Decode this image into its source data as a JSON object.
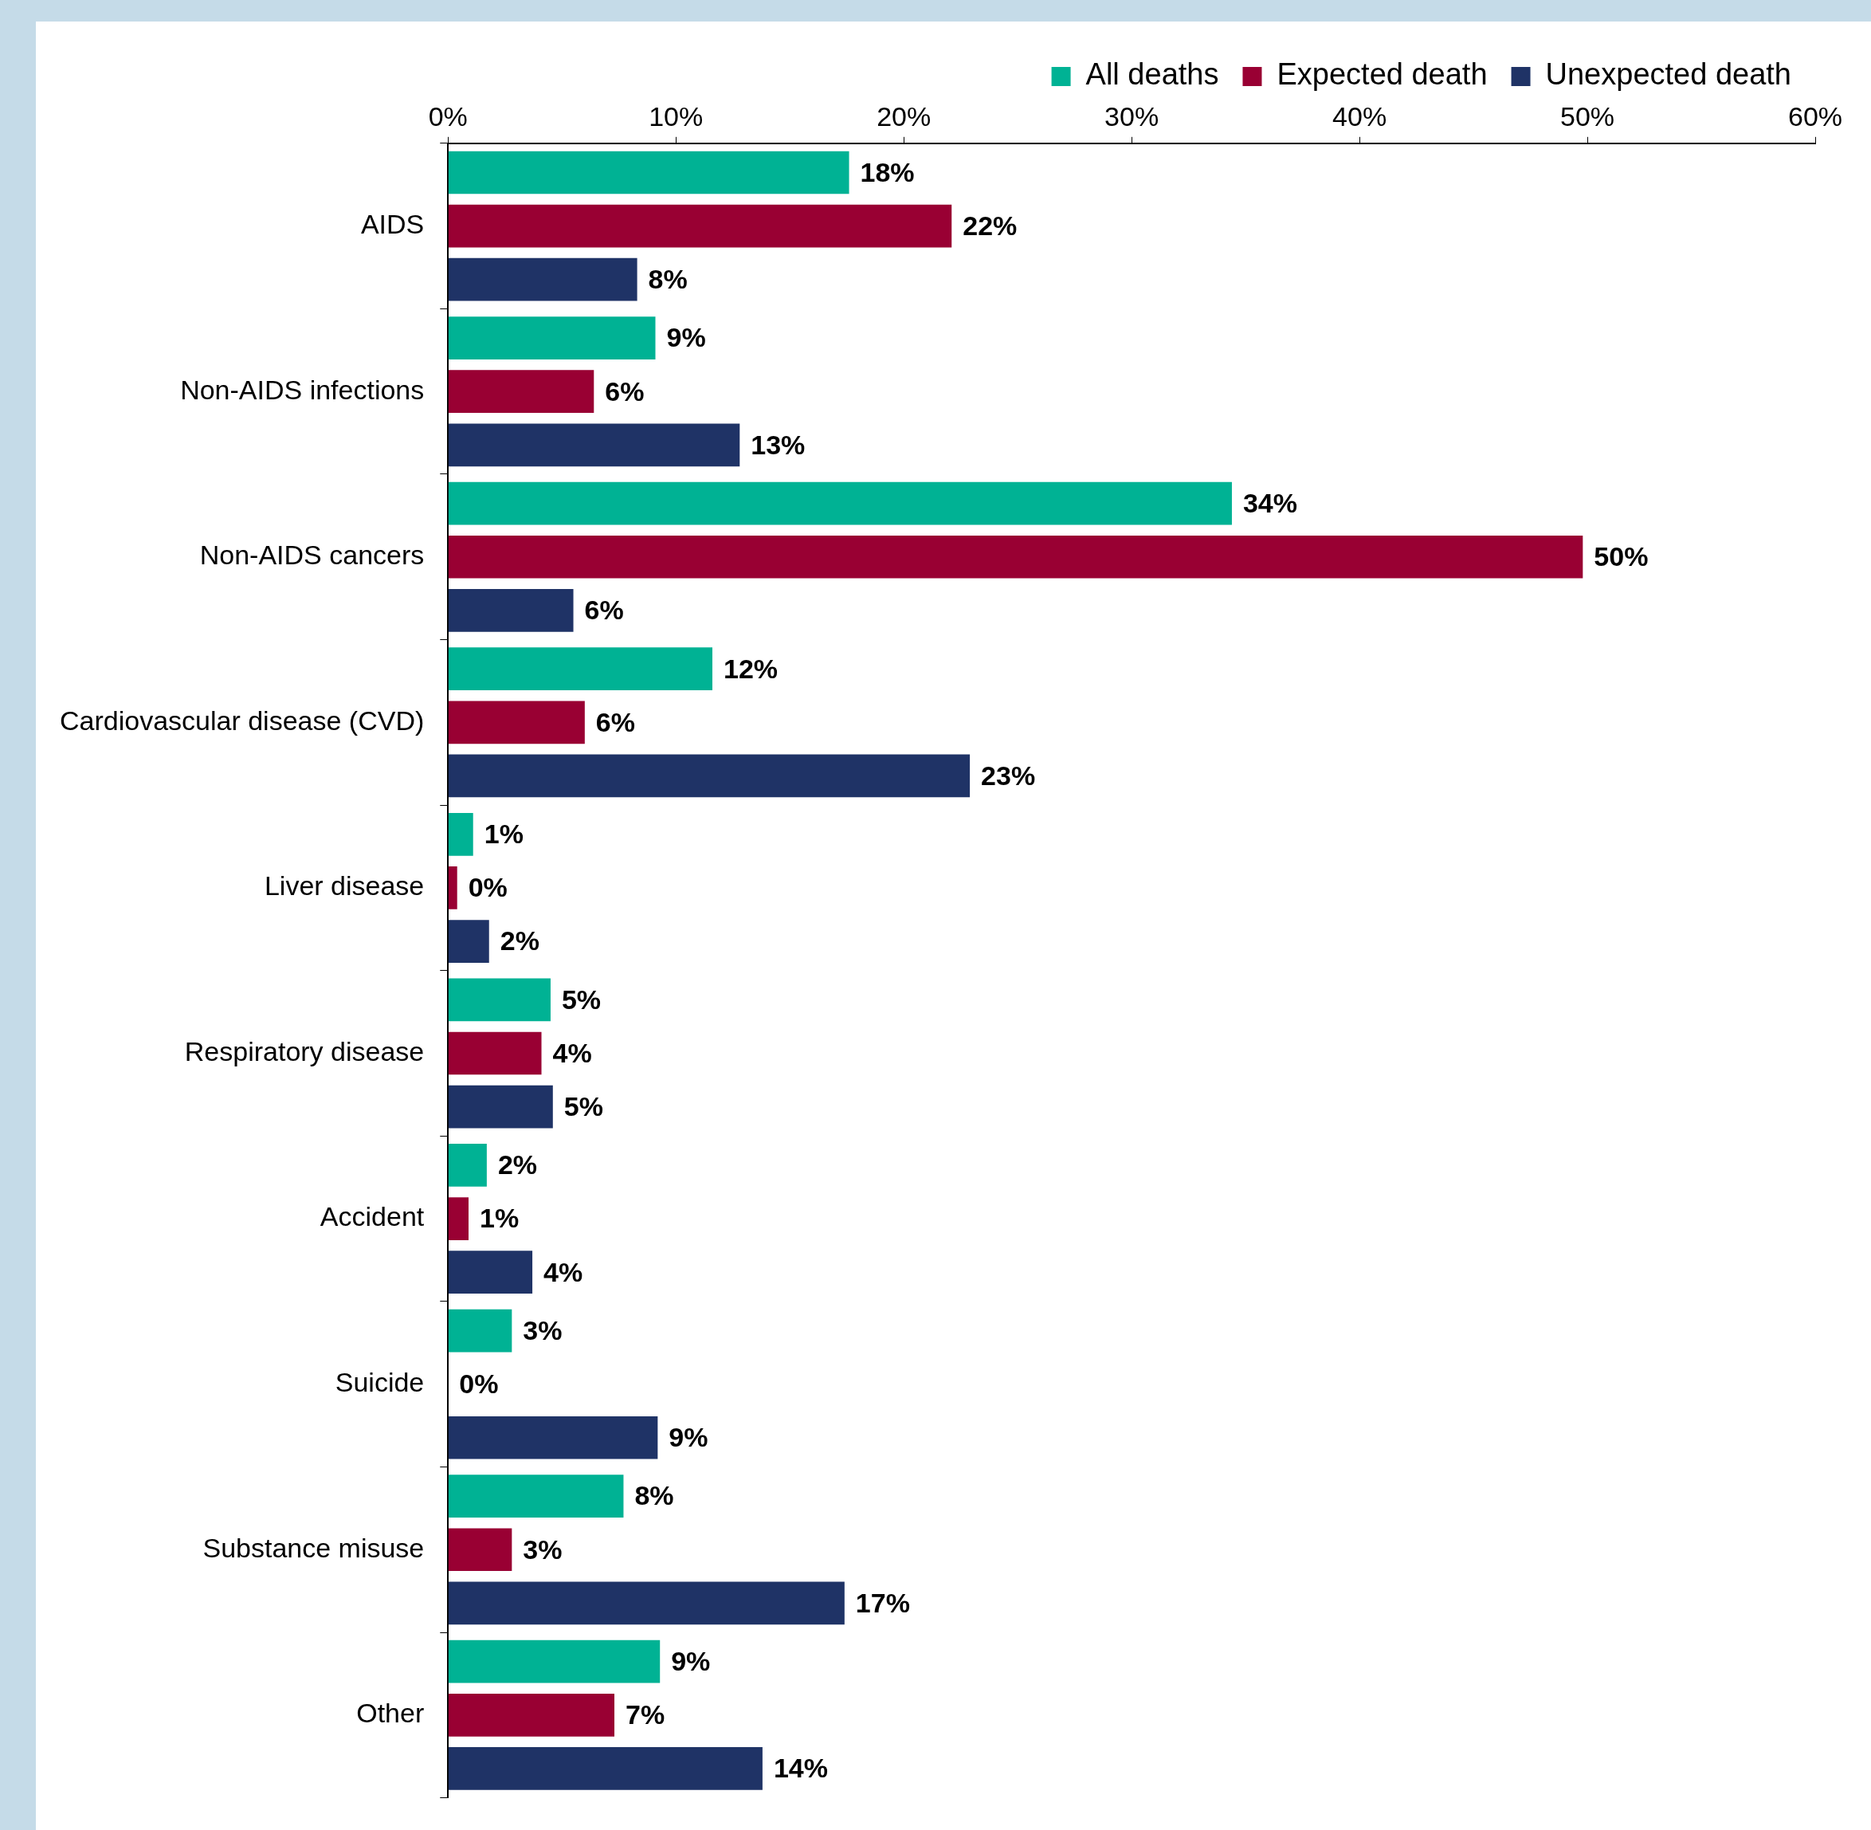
{
  "chart_data": {
    "type": "bar",
    "orientation": "horizontal",
    "categories": [
      "AIDS",
      "Non-AIDS infections",
      "Non-AIDS cancers",
      "Cardiovascular disease (CVD)",
      "Liver disease",
      "Respiratory disease",
      "Accident",
      "Suicide",
      "Substance misuse",
      "Other"
    ],
    "series": [
      {
        "name": "All deaths",
        "color": "#00b294",
        "values": [
          17.6,
          9.1,
          34.4,
          11.6,
          1.1,
          4.5,
          1.7,
          2.8,
          7.7,
          9.3
        ],
        "value_labels": [
          "18%",
          "9%",
          "34%",
          "12%",
          "1%",
          "5%",
          "2%",
          "3%",
          "8%",
          "9%"
        ]
      },
      {
        "name": "Expected death",
        "color": "#990033",
        "values": [
          22.1,
          6.4,
          49.8,
          6.0,
          0.4,
          4.1,
          0.9,
          0,
          2.8,
          7.3
        ],
        "value_labels": [
          "22%",
          "6%",
          "50%",
          "6%",
          "0%",
          "4%",
          "1%",
          "0%",
          "3%",
          "7%"
        ]
      },
      {
        "name": "Unexpected death",
        "color": "#1f3366",
        "values": [
          8.3,
          12.8,
          5.5,
          22.9,
          1.8,
          4.6,
          3.7,
          9.2,
          17.4,
          13.8
        ],
        "value_labels": [
          "8%",
          "13%",
          "6%",
          "23%",
          "2%",
          "5%",
          "4%",
          "9%",
          "17%",
          "14%"
        ]
      }
    ],
    "xlim": [
      0,
      60
    ],
    "xticks": [
      {
        "value": 0,
        "label": "0%"
      },
      {
        "value": 10,
        "label": "10%"
      },
      {
        "value": 20,
        "label": "20%"
      },
      {
        "value": 30,
        "label": "30%"
      },
      {
        "value": 40,
        "label": "40%"
      },
      {
        "value": 50,
        "label": "50%"
      },
      {
        "value": 60,
        "label": "60%"
      }
    ],
    "grid": false,
    "legend": "top"
  }
}
